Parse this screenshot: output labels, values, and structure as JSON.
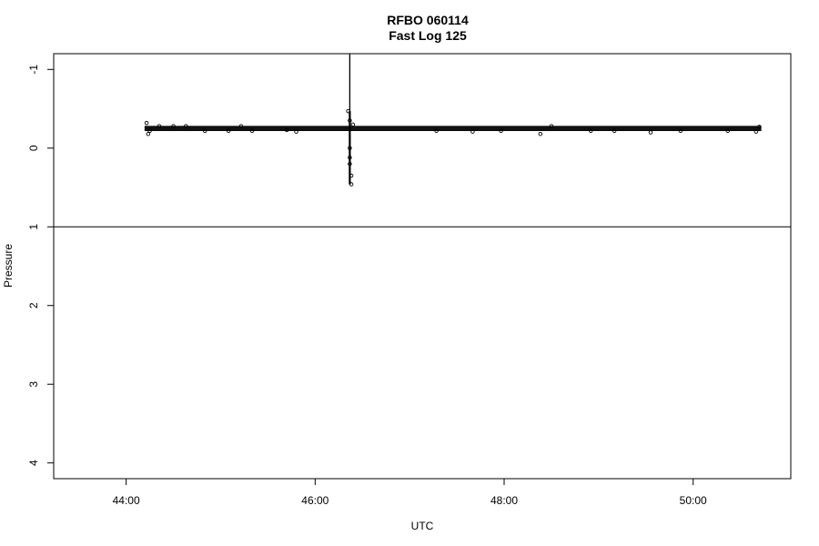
{
  "chart_data": {
    "type": "scatter",
    "title": "RFBO 060114",
    "subtitle": "Fast Log 125",
    "xlabel": "UTC",
    "ylabel": "Pressure",
    "x_ticks": [
      "44:00",
      "46:00",
      "48:00",
      "50:00"
    ],
    "y_ticks": [
      "-1",
      "0",
      "1",
      "2",
      "3",
      "4"
    ],
    "xlim": [
      "43:14",
      "51:02"
    ],
    "ylim": [
      4.2,
      -1.2
    ],
    "y_reversed": true,
    "grid": false,
    "reference_lines": {
      "horizontal_y": 1.0,
      "vertical_x": "46:22",
      "vertical_from_y": -1.2,
      "vertical_to_y": 0.45
    },
    "series": [
      {
        "x_range": [
          "44:13",
          "50:42"
        ],
        "baseline_y": -0.25,
        "spread": 0.03,
        "spike_x": "46:22",
        "spike_min_y": -0.47,
        "spike_max_y": 0.46,
        "points": [
          {
            "x": "44:13",
            "y": -0.32
          },
          {
            "x": "44:14",
            "y": -0.18
          },
          {
            "x": "44:15",
            "y": -0.22
          },
          {
            "x": "44:21",
            "y": -0.28
          },
          {
            "x": "44:30",
            "y": -0.28
          },
          {
            "x": "44:38",
            "y": -0.28
          },
          {
            "x": "44:50",
            "y": -0.22
          },
          {
            "x": "45:05",
            "y": -0.22
          },
          {
            "x": "45:13",
            "y": -0.28
          },
          {
            "x": "45:20",
            "y": -0.22
          },
          {
            "x": "45:42",
            "y": -0.23
          },
          {
            "x": "45:48",
            "y": -0.21
          },
          {
            "x": "46:21",
            "y": -0.47
          },
          {
            "x": "46:22",
            "y": -0.35
          },
          {
            "x": "46:22",
            "y": 0.0
          },
          {
            "x": "46:22",
            "y": 0.12
          },
          {
            "x": "46:22",
            "y": 0.2
          },
          {
            "x": "46:23",
            "y": 0.35
          },
          {
            "x": "46:23",
            "y": 0.46
          },
          {
            "x": "46:24",
            "y": -0.3
          },
          {
            "x": "47:17",
            "y": -0.22
          },
          {
            "x": "47:40",
            "y": -0.21
          },
          {
            "x": "47:58",
            "y": -0.22
          },
          {
            "x": "48:23",
            "y": -0.18
          },
          {
            "x": "48:30",
            "y": -0.28
          },
          {
            "x": "48:55",
            "y": -0.22
          },
          {
            "x": "49:10",
            "y": -0.22
          },
          {
            "x": "49:33",
            "y": -0.2
          },
          {
            "x": "49:52",
            "y": -0.22
          },
          {
            "x": "50:22",
            "y": -0.22
          },
          {
            "x": "50:40",
            "y": -0.21
          },
          {
            "x": "50:42",
            "y": -0.27
          }
        ]
      }
    ]
  }
}
